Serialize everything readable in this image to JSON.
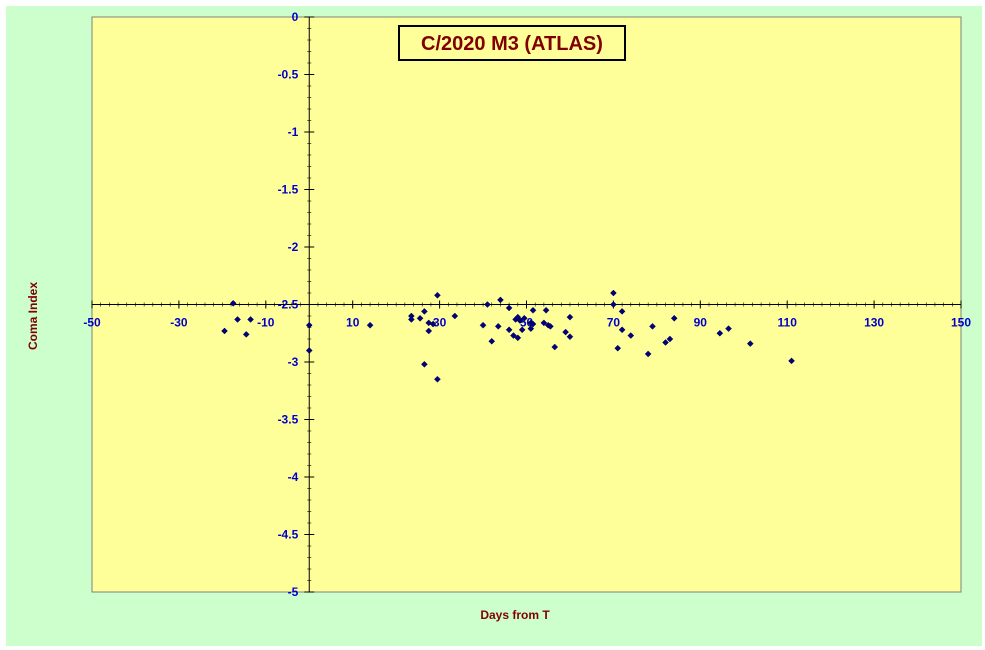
{
  "chart_data": {
    "type": "scatter",
    "title": "C/2020 M3 (ATLAS)",
    "xlabel": "Days from T",
    "ylabel": "Coma Index",
    "xlim": [
      -50,
      150
    ],
    "ylim": [
      -5,
      0
    ],
    "x_ticks": [
      -50,
      -30,
      -10,
      10,
      30,
      50,
      70,
      90,
      110,
      130,
      150
    ],
    "x_tick_labels": [
      "-50",
      "-30",
      "-10",
      "10",
      "30",
      "50",
      "70",
      "90",
      "110",
      "130",
      "150"
    ],
    "y_ticks": [
      0,
      -0.5,
      -1,
      -1.5,
      -2,
      -2.5,
      -3,
      -3.5,
      -4,
      -4.5,
      -5
    ],
    "y_tick_labels": [
      "0",
      "-0.5",
      "-1",
      "-1.5",
      "-2",
      "-2.5",
      "-3",
      "-3.5",
      "-4",
      "-4.5",
      "-5"
    ],
    "x_axis_crosses_y": -2.5,
    "y_axis_crosses_x": 0,
    "grid": false,
    "colors": {
      "plot_background": "#ffff99",
      "chart_background": "#ccffcc",
      "marker": "#000080",
      "tick_text": "#0000cc",
      "title_text": "#800000"
    },
    "series": [
      {
        "marker": "diamond",
        "points": [
          [
            -19.5,
            -2.73
          ],
          [
            -17.5,
            -2.49
          ],
          [
            -16.5,
            -2.63
          ],
          [
            -14.5,
            -2.76
          ],
          [
            -13.5,
            -2.63
          ],
          [
            0,
            -2.68
          ],
          [
            0,
            -2.9
          ],
          [
            14,
            -2.68
          ],
          [
            23.5,
            -2.6
          ],
          [
            23.5,
            -2.63
          ],
          [
            25.5,
            -2.62
          ],
          [
            26.5,
            -2.56
          ],
          [
            26.5,
            -3.02
          ],
          [
            27.5,
            -2.66
          ],
          [
            27.5,
            -2.73
          ],
          [
            28.5,
            -2.67
          ],
          [
            29.5,
            -2.42
          ],
          [
            29.5,
            -3.15
          ],
          [
            33.5,
            -2.6
          ],
          [
            40,
            -2.68
          ],
          [
            41,
            -2.5
          ],
          [
            42,
            -2.82
          ],
          [
            43.5,
            -2.69
          ],
          [
            44,
            -2.46
          ],
          [
            46,
            -2.53
          ],
          [
            46,
            -2.72
          ],
          [
            47,
            -2.77
          ],
          [
            47.5,
            -2.63
          ],
          [
            48,
            -2.79
          ],
          [
            48,
            -2.61
          ],
          [
            48.5,
            -2.64
          ],
          [
            49,
            -2.72
          ],
          [
            49.5,
            -2.62
          ],
          [
            51,
            -2.66
          ],
          [
            51,
            -2.71
          ],
          [
            51.5,
            -2.67
          ],
          [
            51.5,
            -2.55
          ],
          [
            54,
            -2.66
          ],
          [
            54.5,
            -2.55
          ],
          [
            55,
            -2.68
          ],
          [
            55.5,
            -2.69
          ],
          [
            56.5,
            -2.87
          ],
          [
            59,
            -2.74
          ],
          [
            60,
            -2.61
          ],
          [
            60,
            -2.78
          ],
          [
            70,
            -2.4
          ],
          [
            70,
            -2.5
          ],
          [
            71,
            -2.88
          ],
          [
            72,
            -2.72
          ],
          [
            72,
            -2.56
          ],
          [
            74,
            -2.77
          ],
          [
            78,
            -2.93
          ],
          [
            79,
            -2.69
          ],
          [
            82,
            -2.83
          ],
          [
            83,
            -2.8
          ],
          [
            84,
            -2.62
          ],
          [
            94.5,
            -2.75
          ],
          [
            96.5,
            -2.71
          ],
          [
            101.5,
            -2.84
          ],
          [
            111,
            -2.99
          ]
        ]
      }
    ]
  }
}
